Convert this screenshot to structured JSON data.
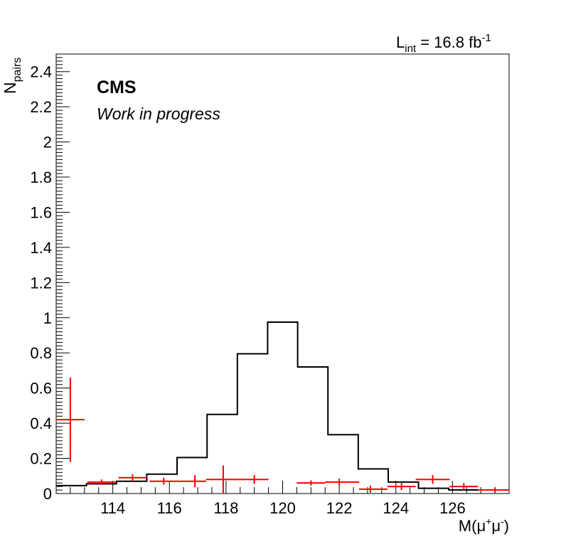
{
  "chart_data": {
    "type": "histogram",
    "luminosity": {
      "prefix": "L",
      "subscript": "int",
      "value": " = 16.8 fb",
      "superscript": "-1"
    },
    "experiment_label": "CMS",
    "status_label": "Work in progress",
    "ylabel": {
      "main": "N",
      "subscript": "pairs"
    },
    "xlabel": {
      "prefix": "M(",
      "mu": "μ",
      "sup_plus": "+",
      "sup_minus": "-",
      "suffix": ")"
    },
    "xlim": [
      112.0,
      128.0
    ],
    "ylim": [
      0,
      2.5
    ],
    "x_tick_labels": [
      "114",
      "116",
      "118",
      "120",
      "122",
      "124",
      "126"
    ],
    "y_tick_labels": [
      "0",
      "0.2",
      "0.4",
      "0.6",
      "0.8",
      "1",
      "1.2",
      "1.4",
      "1.6",
      "1.8",
      "2",
      "2.2",
      "2.4"
    ],
    "bin_edges": [
      112.0,
      113.07,
      114.13,
      115.2,
      116.27,
      117.33,
      118.4,
      119.47,
      120.53,
      121.6,
      122.67,
      123.73,
      124.8,
      125.87,
      126.93,
      128.0
    ],
    "histogram": {
      "color": "#000000",
      "values": [
        0.045,
        0.055,
        0.07,
        0.11,
        0.205,
        0.45,
        0.795,
        0.975,
        0.72,
        0.335,
        0.14,
        0.065,
        0.03,
        0.02,
        0.02
      ]
    },
    "data_points": {
      "color": "#ff0000",
      "points": [
        {
          "x": 112.5,
          "y": 0.42,
          "yerr": 0.24,
          "x_lo": 112.0,
          "x_hi": 113.0
        },
        {
          "x": 113.6,
          "y": 0.065,
          "yerr": 0.015,
          "x_lo": 113.1,
          "x_hi": 114.1
        },
        {
          "x": 114.7,
          "y": 0.09,
          "yerr": 0.02,
          "x_lo": 114.2,
          "x_hi": 115.2
        },
        {
          "x": 115.8,
          "y": 0.07,
          "yerr": 0.02,
          "x_lo": 115.3,
          "x_hi": 116.3
        },
        {
          "x": 116.9,
          "y": 0.07,
          "yerr": 0.035,
          "x_lo": 116.3,
          "x_hi": 117.3
        },
        {
          "x": 117.9,
          "y": 0.08,
          "yerr": 0.08,
          "x_lo": 117.3,
          "x_hi": 118.5
        },
        {
          "x": 119.0,
          "y": 0.08,
          "yerr": 0.025,
          "x_lo": 118.5,
          "x_hi": 119.5
        },
        {
          "x": 121.0,
          "y": 0.06,
          "yerr": 0.015,
          "x_lo": 120.5,
          "x_hi": 121.5
        },
        {
          "x": 122.0,
          "y": 0.065,
          "yerr": 0.02,
          "x_lo": 121.5,
          "x_hi": 122.7
        },
        {
          "x": 123.1,
          "y": 0.025,
          "yerr": 0.02,
          "x_lo": 122.7,
          "x_hi": 123.7
        },
        {
          "x": 124.2,
          "y": 0.04,
          "yerr": 0.02,
          "x_lo": 123.7,
          "x_hi": 124.7
        },
        {
          "x": 125.3,
          "y": 0.08,
          "yerr": 0.025,
          "x_lo": 124.7,
          "x_hi": 125.9
        },
        {
          "x": 126.4,
          "y": 0.04,
          "yerr": 0.02,
          "x_lo": 125.9,
          "x_hi": 126.9
        },
        {
          "x": 127.5,
          "y": 0.02,
          "yerr": 0.015,
          "x_lo": 126.9,
          "x_hi": 128.0
        }
      ]
    },
    "grid": false,
    "legend": "none"
  }
}
